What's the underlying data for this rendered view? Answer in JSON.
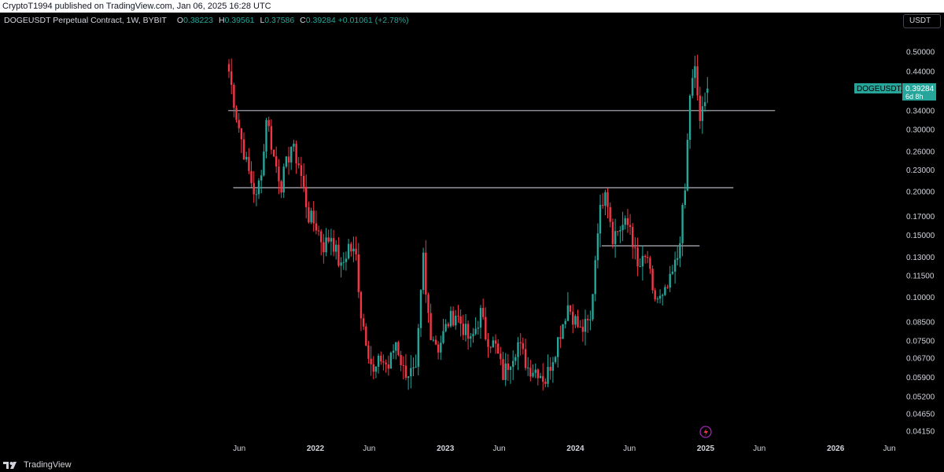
{
  "publisher_line": "CryptoT1994 published on TradingView.com, Jan 06, 2025 16:28 UTC",
  "legend": {
    "symbol": "DOGEUSDT Perpetual Contract, 1W, BYBIT",
    "o_label": "O",
    "o_value": "0.38223",
    "h_label": "H",
    "h_value": "0.39561",
    "l_label": "L",
    "l_value": "0.37586",
    "c_label": "C",
    "c_value": "0.39284",
    "change": "+0.01061 (+2.78%)"
  },
  "currency_button": "USDT",
  "last_price_badge": {
    "symbol": "DOGEUSDT.P",
    "price": "0.39284",
    "countdown": "6d 8h"
  },
  "brand": "TradingView",
  "colors": {
    "up": "#26a69a",
    "down": "#f23645",
    "background": "#000000",
    "text": "#d1d4dc",
    "level_line": "#b2b5be"
  },
  "chart_data": {
    "type": "candlestick",
    "scale": "log",
    "y_ticks": [
      "0.50000",
      "0.44000",
      "0.38000",
      "0.34000",
      "0.30000",
      "0.26000",
      "0.23000",
      "0.20000",
      "0.17000",
      "0.15000",
      "0.13000",
      "0.11500",
      "0.10000",
      "0.08500",
      "0.07500",
      "0.06700",
      "0.05900",
      "0.05200",
      "0.04650",
      "0.04150"
    ],
    "x_ticks": [
      {
        "label": "Jun",
        "date": "2021-06-01"
      },
      {
        "label": "2022",
        "date": "2022-01-01"
      },
      {
        "label": "Jun",
        "date": "2022-06-01"
      },
      {
        "label": "2023",
        "date": "2023-01-01"
      },
      {
        "label": "Jun",
        "date": "2023-06-01"
      },
      {
        "label": "2024",
        "date": "2024-01-01"
      },
      {
        "label": "Jun",
        "date": "2024-06-01"
      },
      {
        "label": "2025",
        "date": "2025-01-01"
      },
      {
        "label": "Jun",
        "date": "2025-06-01"
      },
      {
        "label": "2026",
        "date": "2026-01-01"
      },
      {
        "label": "Jun",
        "date": "2026-06-01"
      }
    ],
    "horizontal_levels": [
      {
        "price": 0.34,
        "from": "2021-05-01",
        "to": "2025-07-15"
      },
      {
        "price": 0.205,
        "from": "2021-05-15",
        "to": "2025-03-20"
      },
      {
        "price": 0.14,
        "from": "2024-03-15",
        "to": "2024-12-15"
      }
    ],
    "anchors": [
      [
        "2021-05-03",
        0.44
      ],
      [
        "2021-05-24",
        0.33
      ],
      [
        "2021-06-21",
        0.24
      ],
      [
        "2021-07-19",
        0.19
      ],
      [
        "2021-08-09",
        0.26
      ],
      [
        "2021-08-16",
        0.33
      ],
      [
        "2021-09-06",
        0.25
      ],
      [
        "2021-09-27",
        0.21
      ],
      [
        "2021-10-25",
        0.27
      ],
      [
        "2021-11-15",
        0.24
      ],
      [
        "2021-12-13",
        0.17
      ],
      [
        "2022-01-03",
        0.16
      ],
      [
        "2022-01-24",
        0.14
      ],
      [
        "2022-02-14",
        0.15
      ],
      [
        "2022-03-14",
        0.12
      ],
      [
        "2022-04-04",
        0.14
      ],
      [
        "2022-04-25",
        0.13
      ],
      [
        "2022-05-09",
        0.09
      ],
      [
        "2022-06-13",
        0.06
      ],
      [
        "2022-07-04",
        0.067
      ],
      [
        "2022-07-25",
        0.063
      ],
      [
        "2022-08-15",
        0.075
      ],
      [
        "2022-09-05",
        0.062
      ],
      [
        "2022-10-10",
        0.06
      ],
      [
        "2022-10-31",
        0.13
      ],
      [
        "2022-11-07",
        0.1
      ],
      [
        "2022-11-21",
        0.08
      ],
      [
        "2022-12-12",
        0.072
      ],
      [
        "2023-01-09",
        0.085
      ],
      [
        "2023-01-30",
        0.09
      ],
      [
        "2023-02-20",
        0.082
      ],
      [
        "2023-03-13",
        0.074
      ],
      [
        "2023-04-10",
        0.09
      ],
      [
        "2023-04-24",
        0.078
      ],
      [
        "2023-05-22",
        0.072
      ],
      [
        "2023-06-12",
        0.06
      ],
      [
        "2023-07-03",
        0.067
      ],
      [
        "2023-07-24",
        0.074
      ],
      [
        "2023-08-21",
        0.063
      ],
      [
        "2023-09-18",
        0.062
      ],
      [
        "2023-10-09",
        0.058
      ],
      [
        "2023-10-30",
        0.068
      ],
      [
        "2023-11-20",
        0.08
      ],
      [
        "2023-12-11",
        0.095
      ],
      [
        "2024-01-15",
        0.08
      ],
      [
        "2024-02-12",
        0.085
      ],
      [
        "2024-03-04",
        0.16
      ],
      [
        "2024-03-25",
        0.21
      ],
      [
        "2024-04-15",
        0.15
      ],
      [
        "2024-05-13",
        0.16
      ],
      [
        "2024-06-03",
        0.16
      ],
      [
        "2024-06-24",
        0.12
      ],
      [
        "2024-07-22",
        0.13
      ],
      [
        "2024-08-05",
        0.1
      ],
      [
        "2024-09-02",
        0.098
      ],
      [
        "2024-09-23",
        0.11
      ],
      [
        "2024-10-14",
        0.13
      ],
      [
        "2024-11-04",
        0.2
      ],
      [
        "2024-11-18",
        0.38
      ],
      [
        "2024-12-02",
        0.44
      ],
      [
        "2024-12-16",
        0.32
      ],
      [
        "2024-12-30",
        0.35
      ],
      [
        "2025-01-06",
        0.39284
      ]
    ]
  }
}
